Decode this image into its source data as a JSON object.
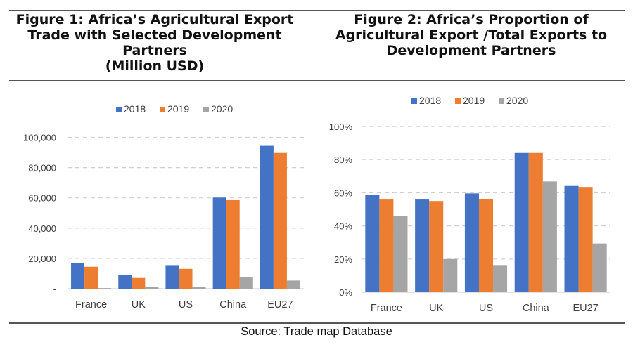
{
  "figures": [
    {
      "title_lines": [
        "Figure 1: Africa’s Agricultural Export",
        "Trade with Selected Development",
        "Partners",
        "(Million USD)"
      ]
    },
    {
      "title_lines": [
        "Figure 2: Africa’s Proportion of",
        "Agricultural Export /Total Exports to",
        "Development Partners"
      ]
    }
  ],
  "source": "Source: Trade map Database",
  "colors": {
    "2018": "#4472C4",
    "2019": "#ED7D31",
    "2020": "#A5A5A5",
    "grid": "#D0D0D0",
    "axis": "#D9D9D9",
    "tick_text": "#404040"
  },
  "chart_data": [
    {
      "type": "bar",
      "title": "Figure 1: Africa’s Agricultural Export Trade with Selected Development Partners (Million USD)",
      "categories": [
        "France",
        "UK",
        "US",
        "China",
        "EU27"
      ],
      "series": [
        {
          "name": "2018",
          "values": [
            17100,
            8900,
            15600,
            60200,
            94400
          ]
        },
        {
          "name": "2019",
          "values": [
            14500,
            7100,
            13100,
            58500,
            89700
          ]
        },
        {
          "name": "2020",
          "values": [
            400,
            1000,
            1100,
            7700,
            5400
          ]
        }
      ],
      "xlabel": "",
      "ylabel": "",
      "ylim": [
        0,
        100000
      ],
      "yticks": [
        0,
        20000,
        40000,
        60000,
        80000,
        100000
      ],
      "ytick_labels": [
        "-",
        "20,000",
        "40,000",
        "60,000",
        "80,000",
        "100,000"
      ],
      "grid": true,
      "legend_position": "top-center"
    },
    {
      "type": "bar",
      "title": "Figure 2: Africa’s Proportion of Agricultural Export /Total Exports to Development Partners",
      "categories": [
        "France",
        "UK",
        "US",
        "China",
        "EU27"
      ],
      "series": [
        {
          "name": "2018",
          "values": [
            58.6,
            55.9,
            59.6,
            84.0,
            64.1
          ]
        },
        {
          "name": "2019",
          "values": [
            55.9,
            55.0,
            56.2,
            84.0,
            63.5
          ]
        },
        {
          "name": "2020",
          "values": [
            46.0,
            20.0,
            16.4,
            66.8,
            29.4
          ]
        }
      ],
      "xlabel": "",
      "ylabel": "",
      "ylim": [
        0,
        100
      ],
      "yticks": [
        0,
        20,
        40,
        60,
        80,
        100
      ],
      "ytick_labels": [
        "0%",
        "20%",
        "40%",
        "60%",
        "80%",
        "100%"
      ],
      "grid": true,
      "legend_position": "top-center"
    }
  ]
}
